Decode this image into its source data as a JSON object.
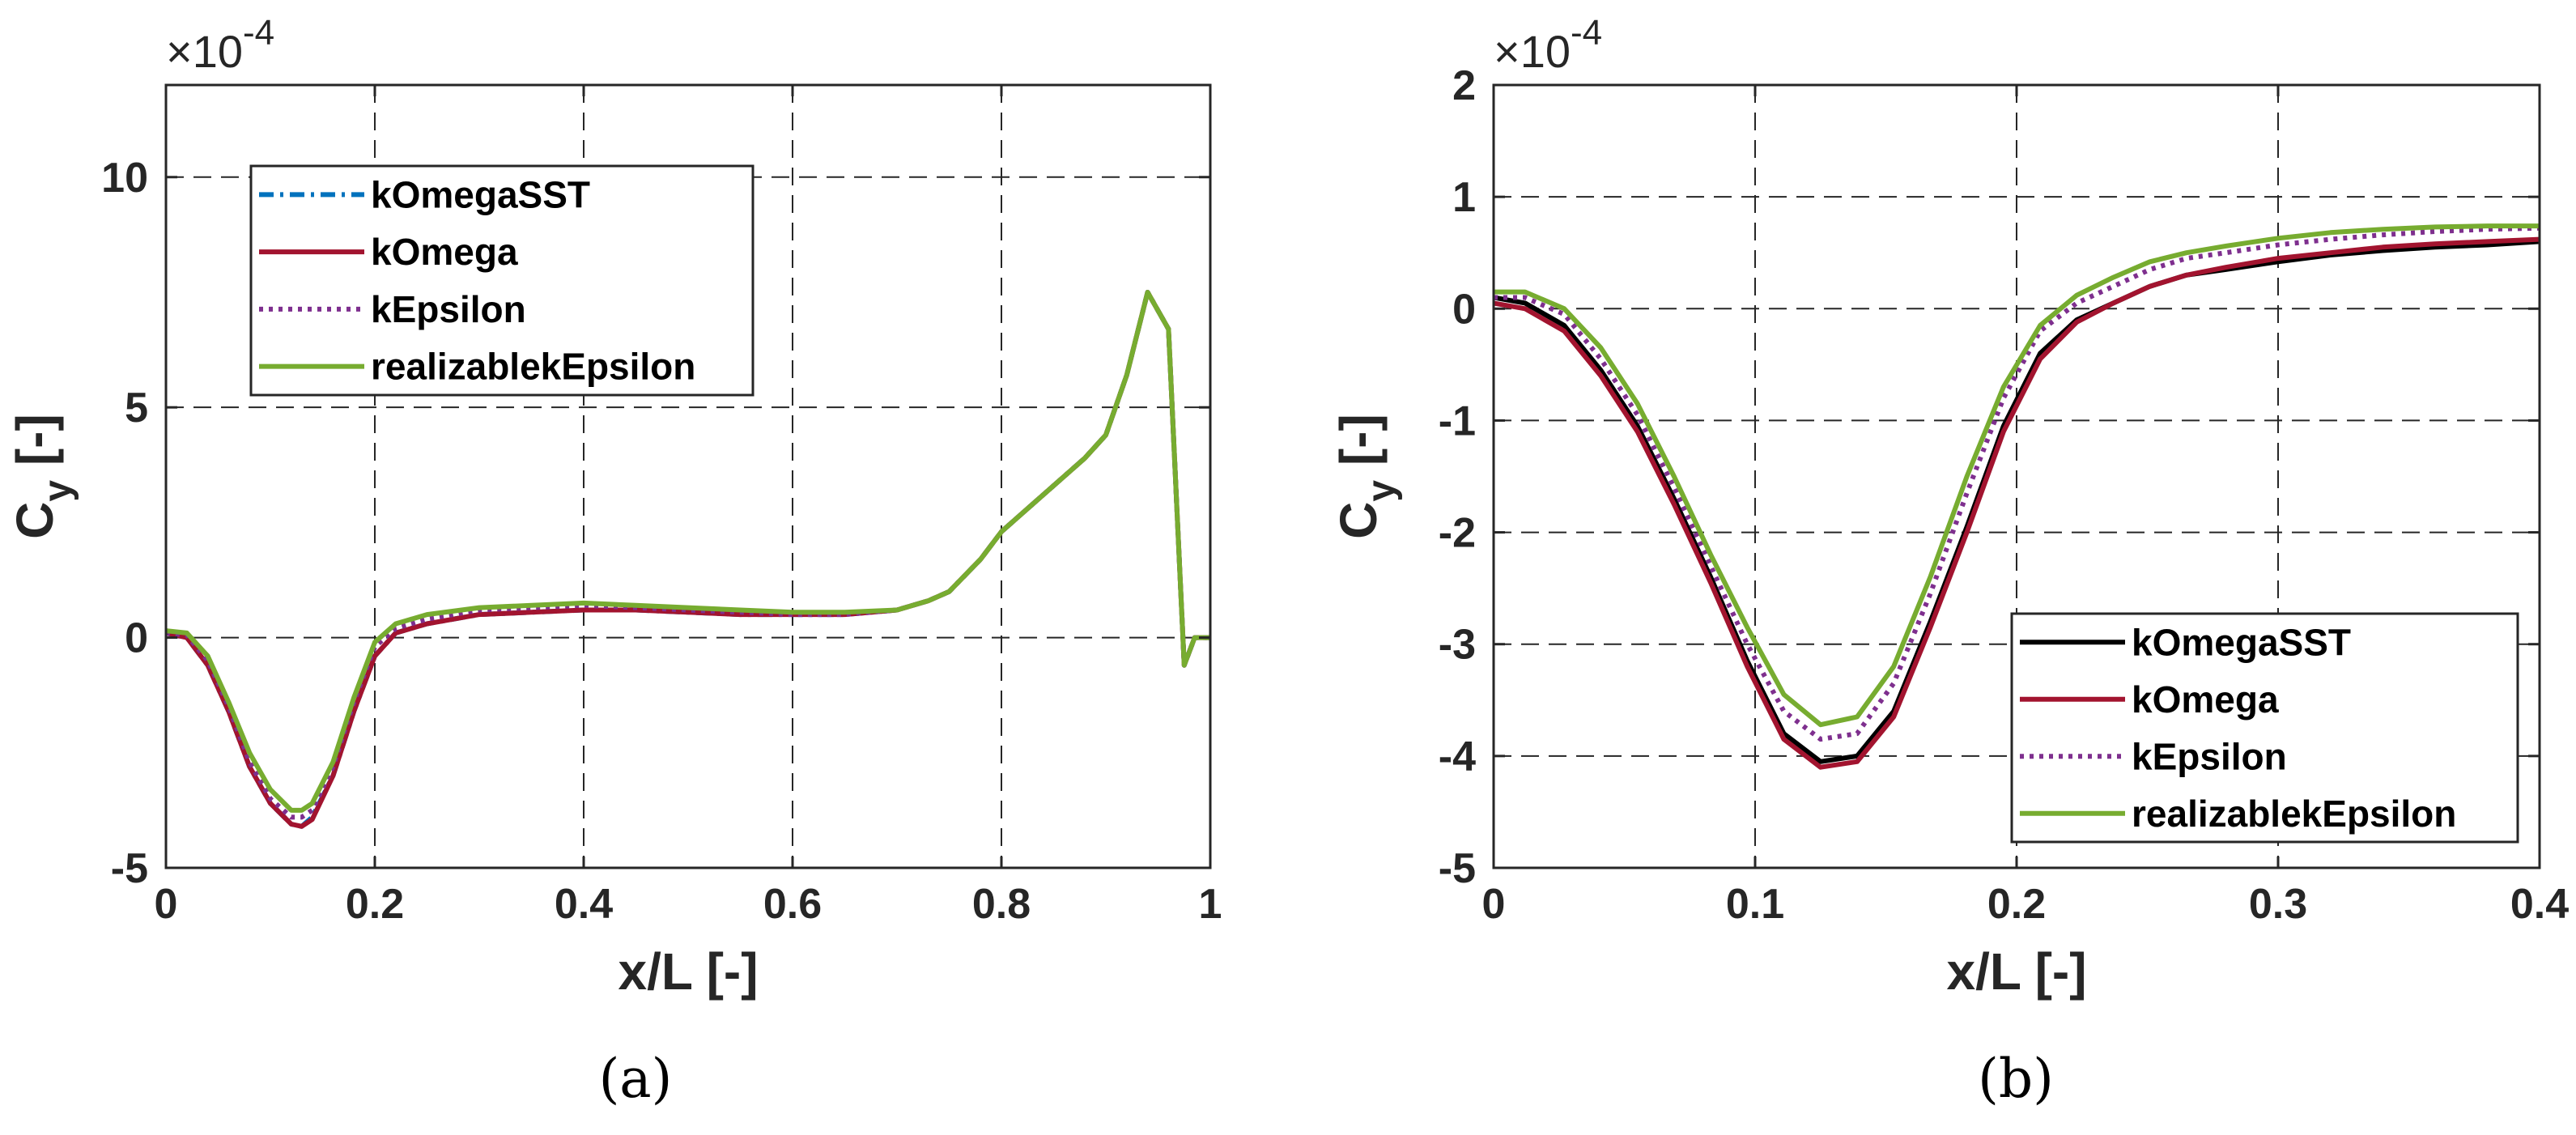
{
  "chart_data": [
    {
      "type": "line",
      "panel": "a",
      "caption": "(a)",
      "xlabel": "x/L [-]",
      "ylabel_main": "C",
      "ylabel_sub": "y",
      "ylabel_suffix": " [-]",
      "exponent": "-4",
      "exponent_prefix": "×10",
      "xlim": [
        0,
        1
      ],
      "ylim": [
        -5,
        12
      ],
      "xticks": [
        0,
        0.2,
        0.4,
        0.6,
        0.8,
        1
      ],
      "xtick_labels": [
        "0",
        "0.2",
        "0.4",
        "0.6",
        "0.8",
        "1"
      ],
      "yticks": [
        -5,
        0,
        5,
        10
      ],
      "ytick_labels": [
        "-5",
        "0",
        "5",
        "10"
      ],
      "grid": true,
      "legend_position": "top-left",
      "series": [
        {
          "name": "kOmegaSST",
          "color": "#0072BD",
          "dash": "dashdot",
          "x": [
            0,
            0.02,
            0.04,
            0.06,
            0.08,
            0.1,
            0.12,
            0.13,
            0.14,
            0.16,
            0.18,
            0.2,
            0.22,
            0.25,
            0.3,
            0.35,
            0.4,
            0.45,
            0.5,
            0.55,
            0.6,
            0.65,
            0.7,
            0.73,
            0.75,
            0.78,
            0.8,
            0.83,
            0.86,
            0.88,
            0.9,
            0.92,
            0.94,
            0.96,
            0.975,
            0.985,
            1.0
          ],
          "y": [
            0.1,
            0.0,
            -0.6,
            -1.6,
            -2.8,
            -3.6,
            -4.05,
            -4.1,
            -3.9,
            -3.0,
            -1.6,
            -0.4,
            0.1,
            0.3,
            0.5,
            0.55,
            0.6,
            0.6,
            0.55,
            0.5,
            0.5,
            0.5,
            0.6,
            0.8,
            1.0,
            1.7,
            2.3,
            2.9,
            3.5,
            3.9,
            4.4,
            5.7,
            7.5,
            6.7,
            -0.6,
            0.0,
            0.0
          ]
        },
        {
          "name": "kOmega",
          "color": "#A2142F",
          "dash": "solid",
          "x": [
            0,
            0.02,
            0.04,
            0.06,
            0.08,
            0.1,
            0.12,
            0.13,
            0.14,
            0.16,
            0.18,
            0.2,
            0.22,
            0.25,
            0.3,
            0.35,
            0.4,
            0.45,
            0.5,
            0.55,
            0.6,
            0.65,
            0.7,
            0.73,
            0.75,
            0.78,
            0.8,
            0.83,
            0.86,
            0.88,
            0.9,
            0.92,
            0.94,
            0.96,
            0.975,
            0.985,
            1.0
          ],
          "y": [
            0.1,
            0.0,
            -0.6,
            -1.6,
            -2.8,
            -3.6,
            -4.05,
            -4.1,
            -3.95,
            -3.0,
            -1.6,
            -0.4,
            0.1,
            0.3,
            0.5,
            0.55,
            0.6,
            0.6,
            0.55,
            0.5,
            0.5,
            0.5,
            0.6,
            0.8,
            1.0,
            1.7,
            2.3,
            2.9,
            3.5,
            3.9,
            4.4,
            5.7,
            7.5,
            6.7,
            -0.6,
            0.0,
            0.0
          ]
        },
        {
          "name": "kEpsilon",
          "color": "#7E2F8E",
          "dash": "dotted",
          "x": [
            0,
            0.02,
            0.04,
            0.06,
            0.08,
            0.1,
            0.12,
            0.13,
            0.14,
            0.16,
            0.18,
            0.2,
            0.22,
            0.25,
            0.3,
            0.35,
            0.4,
            0.45,
            0.5,
            0.55,
            0.6,
            0.65,
            0.7,
            0.73,
            0.75,
            0.78,
            0.8,
            0.83,
            0.86,
            0.88,
            0.9,
            0.92,
            0.94,
            0.96,
            0.975,
            0.985,
            1.0
          ],
          "y": [
            0.1,
            0.05,
            -0.5,
            -1.5,
            -2.7,
            -3.5,
            -3.9,
            -3.9,
            -3.75,
            -2.8,
            -1.4,
            -0.2,
            0.2,
            0.4,
            0.6,
            0.65,
            0.7,
            0.65,
            0.6,
            0.55,
            0.5,
            0.5,
            0.6,
            0.8,
            1.0,
            1.7,
            2.3,
            2.9,
            3.5,
            3.9,
            4.4,
            5.7,
            7.5,
            6.7,
            -0.6,
            0.0,
            0.0
          ]
        },
        {
          "name": "realizablekEpsilon",
          "color": "#77AC30",
          "dash": "solid",
          "x": [
            0,
            0.02,
            0.04,
            0.06,
            0.08,
            0.1,
            0.12,
            0.13,
            0.14,
            0.16,
            0.18,
            0.2,
            0.22,
            0.25,
            0.3,
            0.35,
            0.4,
            0.45,
            0.5,
            0.55,
            0.6,
            0.65,
            0.7,
            0.73,
            0.75,
            0.78,
            0.8,
            0.83,
            0.86,
            0.88,
            0.9,
            0.92,
            0.94,
            0.96,
            0.975,
            0.985,
            1.0
          ],
          "y": [
            0.15,
            0.1,
            -0.4,
            -1.4,
            -2.5,
            -3.3,
            -3.75,
            -3.75,
            -3.6,
            -2.7,
            -1.3,
            -0.1,
            0.3,
            0.5,
            0.65,
            0.7,
            0.75,
            0.7,
            0.65,
            0.6,
            0.55,
            0.55,
            0.6,
            0.8,
            1.0,
            1.7,
            2.3,
            2.9,
            3.5,
            3.9,
            4.4,
            5.7,
            7.5,
            6.7,
            -0.6,
            0.0,
            0.0
          ]
        }
      ]
    },
    {
      "type": "line",
      "panel": "b",
      "caption": "(b)",
      "xlabel": "x/L [-]",
      "ylabel_main": "C",
      "ylabel_sub": "y",
      "ylabel_suffix": " [-]",
      "exponent": "-4",
      "exponent_prefix": "×10",
      "xlim": [
        0,
        0.4
      ],
      "ylim": [
        -5,
        2
      ],
      "xticks": [
        0,
        0.1,
        0.2,
        0.3,
        0.4
      ],
      "xtick_labels": [
        "0",
        "0.1",
        "0.2",
        "0.3",
        "0.4"
      ],
      "yticks": [
        -5,
        -4,
        -3,
        -2,
        -1,
        0,
        1,
        2
      ],
      "ytick_labels": [
        "-5",
        "-4",
        "-3",
        "-2",
        "-1",
        "0",
        "1",
        "2"
      ],
      "grid": true,
      "legend_position": "bottom-right",
      "series": [
        {
          "name": "kOmegaSST",
          "color": "#000000",
          "dash": "solid",
          "x": [
            0,
            0.012,
            0.027,
            0.041,
            0.055,
            0.069,
            0.083,
            0.097,
            0.111,
            0.125,
            0.139,
            0.153,
            0.167,
            0.181,
            0.195,
            0.209,
            0.223,
            0.237,
            0.251,
            0.265,
            0.28,
            0.3,
            0.32,
            0.34,
            0.36,
            0.38,
            0.4
          ],
          "y": [
            0.1,
            0.05,
            -0.15,
            -0.55,
            -1.05,
            -1.7,
            -2.4,
            -3.15,
            -3.8,
            -4.05,
            -4.0,
            -3.6,
            -2.8,
            -1.95,
            -1.05,
            -0.4,
            -0.1,
            0.05,
            0.2,
            0.3,
            0.35,
            0.42,
            0.48,
            0.52,
            0.55,
            0.57,
            0.6
          ]
        },
        {
          "name": "kOmega",
          "color": "#A2142F",
          "dash": "solid",
          "x": [
            0,
            0.012,
            0.027,
            0.041,
            0.055,
            0.069,
            0.083,
            0.097,
            0.111,
            0.125,
            0.139,
            0.153,
            0.167,
            0.181,
            0.195,
            0.209,
            0.223,
            0.237,
            0.251,
            0.265,
            0.28,
            0.3,
            0.32,
            0.34,
            0.36,
            0.38,
            0.4
          ],
          "y": [
            0.05,
            0.0,
            -0.2,
            -0.6,
            -1.1,
            -1.75,
            -2.45,
            -3.2,
            -3.85,
            -4.1,
            -4.05,
            -3.65,
            -2.85,
            -2.0,
            -1.1,
            -0.45,
            -0.12,
            0.05,
            0.2,
            0.3,
            0.37,
            0.45,
            0.5,
            0.55,
            0.58,
            0.6,
            0.62
          ]
        },
        {
          "name": "kEpsilon",
          "color": "#7E2F8E",
          "dash": "dotted",
          "x": [
            0,
            0.012,
            0.027,
            0.041,
            0.055,
            0.069,
            0.083,
            0.097,
            0.111,
            0.125,
            0.139,
            0.153,
            0.167,
            0.181,
            0.195,
            0.209,
            0.223,
            0.237,
            0.251,
            0.265,
            0.28,
            0.3,
            0.32,
            0.34,
            0.36,
            0.38,
            0.4
          ],
          "y": [
            0.1,
            0.1,
            -0.05,
            -0.45,
            -0.95,
            -1.6,
            -2.3,
            -3.0,
            -3.6,
            -3.85,
            -3.8,
            -3.35,
            -2.55,
            -1.65,
            -0.8,
            -0.2,
            0.05,
            0.2,
            0.35,
            0.45,
            0.5,
            0.57,
            0.62,
            0.66,
            0.69,
            0.71,
            0.72
          ]
        },
        {
          "name": "realizablekEpsilon",
          "color": "#77AC30",
          "dash": "solid",
          "x": [
            0,
            0.012,
            0.027,
            0.041,
            0.055,
            0.069,
            0.083,
            0.097,
            0.111,
            0.125,
            0.139,
            0.153,
            0.167,
            0.181,
            0.195,
            0.209,
            0.223,
            0.237,
            0.251,
            0.265,
            0.28,
            0.3,
            0.32,
            0.34,
            0.36,
            0.38,
            0.4
          ],
          "y": [
            0.15,
            0.15,
            0.0,
            -0.35,
            -0.85,
            -1.5,
            -2.2,
            -2.85,
            -3.45,
            -3.72,
            -3.65,
            -3.2,
            -2.4,
            -1.5,
            -0.7,
            -0.15,
            0.12,
            0.28,
            0.42,
            0.5,
            0.56,
            0.63,
            0.68,
            0.71,
            0.73,
            0.74,
            0.74
          ]
        }
      ]
    }
  ]
}
